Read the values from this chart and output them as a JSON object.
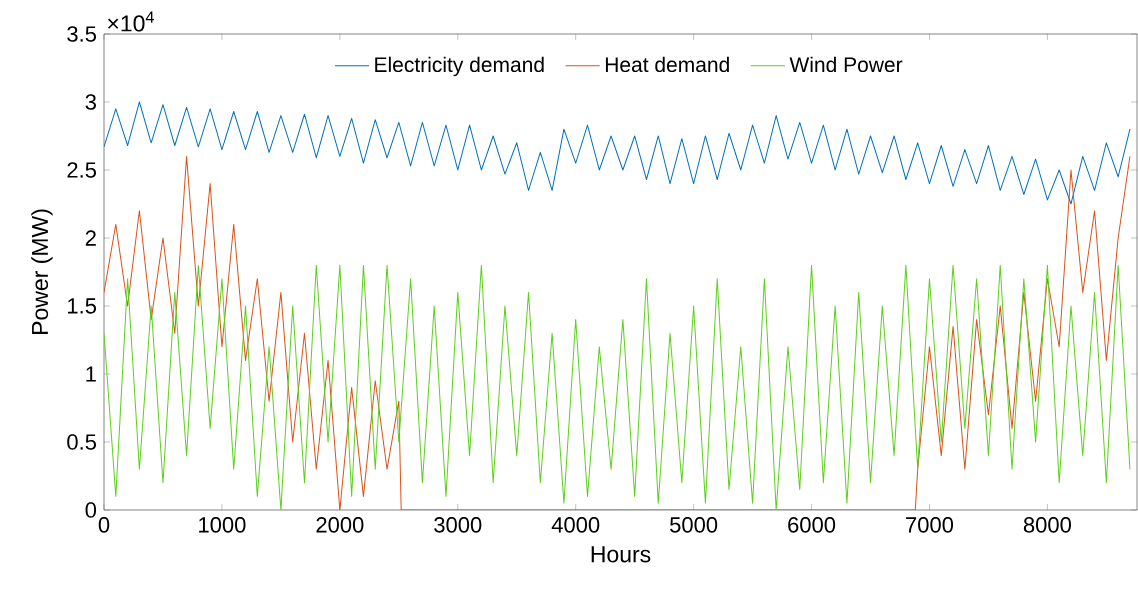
{
  "chart_data": {
    "type": "line",
    "xlabel": "Hours",
    "ylabel": "Power (MW)",
    "annotations": [
      "×10$^{4}$"
    ],
    "xlim": [
      0,
      8760
    ],
    "xticks": [
      0,
      1000,
      2000,
      3000,
      4000,
      5000,
      6000,
      7000,
      8000
    ],
    "ylim": [
      0,
      3.5
    ],
    "yticks": [
      0,
      0.5,
      1,
      1.5,
      2,
      2.5,
      3,
      3.5
    ],
    "grid": false,
    "legend": "top",
    "line_style": "solid",
    "marker": "none",
    "x": [
      0,
      100,
      200,
      300,
      400,
      500,
      600,
      700,
      800,
      900,
      1000,
      1100,
      1200,
      1300,
      1400,
      1500,
      1600,
      1700,
      1800,
      1900,
      2000,
      2100,
      2200,
      2300,
      2400,
      2500,
      2600,
      2700,
      2800,
      2900,
      3000,
      3100,
      3200,
      3300,
      3400,
      3500,
      3600,
      3700,
      3800,
      3900,
      4000,
      4100,
      4200,
      4300,
      4400,
      4500,
      4600,
      4700,
      4800,
      4900,
      5000,
      5100,
      5200,
      5300,
      5400,
      5500,
      5600,
      5700,
      5800,
      5900,
      6000,
      6100,
      6200,
      6300,
      6400,
      6500,
      6600,
      6700,
      6800,
      6900,
      7000,
      7100,
      7200,
      7300,
      7400,
      7500,
      7600,
      7700,
      7800,
      7900,
      8000,
      8100,
      8200,
      8300,
      8400,
      8500,
      8600,
      8700
    ],
    "series": [
      {
        "name": "Electricity demand",
        "color": "#0072bd",
        "values": [
          2.67,
          2.95,
          2.68,
          3.0,
          2.7,
          2.98,
          2.68,
          2.96,
          2.67,
          2.95,
          2.65,
          2.93,
          2.65,
          2.93,
          2.63,
          2.9,
          2.63,
          2.91,
          2.59,
          2.9,
          2.6,
          2.88,
          2.55,
          2.87,
          2.59,
          2.85,
          2.53,
          2.85,
          2.53,
          2.83,
          2.5,
          2.83,
          2.5,
          2.75,
          2.47,
          2.7,
          2.35,
          2.63,
          2.35,
          2.8,
          2.55,
          2.83,
          2.5,
          2.75,
          2.5,
          2.75,
          2.43,
          2.75,
          2.4,
          2.73,
          2.4,
          2.75,
          2.43,
          2.77,
          2.5,
          2.83,
          2.55,
          2.9,
          2.58,
          2.85,
          2.55,
          2.83,
          2.5,
          2.8,
          2.47,
          2.75,
          2.48,
          2.75,
          2.43,
          2.7,
          2.4,
          2.68,
          2.38,
          2.65,
          2.4,
          2.68,
          2.35,
          2.6,
          2.32,
          2.58,
          2.28,
          2.5,
          2.25,
          2.6,
          2.35,
          2.7,
          2.45,
          2.8
        ]
      },
      {
        "name": "Heat demand",
        "color": "#d95319",
        "x": [
          0,
          100,
          200,
          300,
          400,
          500,
          600,
          700,
          800,
          900,
          1000,
          1100,
          1200,
          1300,
          1400,
          1500,
          1600,
          1700,
          1800,
          1900,
          2000,
          2100,
          2200,
          2300,
          2400,
          2500,
          2520,
          6880,
          6900,
          7000,
          7100,
          7200,
          7300,
          7400,
          7500,
          7600,
          7700,
          7800,
          7900,
          8000,
          8100,
          8200,
          8300,
          8400,
          8500,
          8600,
          8700
        ],
        "values": [
          1.6,
          2.1,
          1.5,
          2.2,
          1.4,
          2.0,
          1.3,
          2.6,
          1.5,
          2.4,
          1.2,
          2.1,
          1.1,
          1.7,
          0.8,
          1.6,
          0.5,
          1.3,
          0.3,
          1.1,
          0,
          0.9,
          0.1,
          0.95,
          0.3,
          0.8,
          0,
          0,
          0.3,
          1.2,
          0.4,
          1.35,
          0.3,
          1.4,
          0.7,
          1.5,
          0.6,
          1.6,
          0.8,
          1.7,
          1.2,
          2.5,
          1.6,
          2.2,
          1.1,
          2.0,
          2.6
        ]
      },
      {
        "name": "Wind Power",
        "color": "#5ccf1c",
        "values": [
          1.3,
          0.1,
          1.7,
          0.3,
          1.5,
          0.2,
          1.6,
          0.4,
          1.8,
          0.6,
          1.7,
          0.3,
          1.5,
          0.1,
          1.2,
          0,
          1.5,
          0.2,
          1.8,
          0.5,
          1.8,
          0.1,
          1.8,
          0.3,
          1.8,
          0.5,
          1.7,
          0.2,
          1.5,
          0.1,
          1.6,
          0.4,
          1.8,
          0.2,
          1.5,
          0.4,
          1.6,
          0.2,
          1.3,
          0.05,
          1.4,
          0.1,
          1.2,
          0.3,
          1.4,
          0.1,
          1.7,
          0.05,
          1.3,
          0.2,
          1.5,
          0.05,
          1.7,
          0.15,
          1.2,
          0.05,
          1.7,
          0,
          1.2,
          0.15,
          1.8,
          0.2,
          1.5,
          0.05,
          1.6,
          0.2,
          1.5,
          0.4,
          1.8,
          0.3,
          1.7,
          0.5,
          1.8,
          0.6,
          1.7,
          0.4,
          1.8,
          0.3,
          1.7,
          0.5,
          1.8,
          0.2,
          1.5,
          0.4,
          1.6,
          0.2,
          1.8,
          0.3
        ]
      }
    ]
  }
}
